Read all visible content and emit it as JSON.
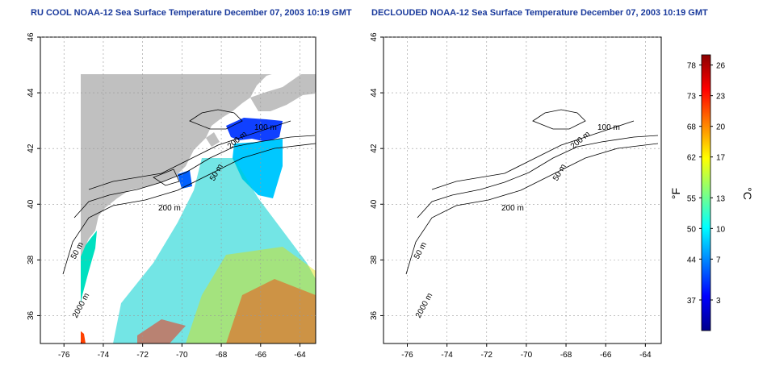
{
  "panels": [
    {
      "title": "RU COOL NOAA-12 Sea Surface Temperature December 07, 2003 10:19 GMT",
      "contour_labels": [
        "50 m",
        "100 m",
        "200 m",
        "2000 m",
        "50 m",
        "200 m"
      ]
    },
    {
      "title": "DECLOUDED NOAA-12 Sea Surface Temperature December 07, 2003 10:19 GMT",
      "contour_labels": [
        "50 m",
        "100 m",
        "200 m",
        "2000 m",
        "50 m",
        "200 m"
      ]
    }
  ],
  "axes": {
    "x_ticks": [
      "-76",
      "-74",
      "-72",
      "-70",
      "-68",
      "-66",
      "-64"
    ],
    "x_values": [
      -76,
      -74,
      -72,
      -70,
      -68,
      -66,
      -64
    ],
    "y_ticks": [
      "36",
      "38",
      "40",
      "42",
      "44",
      "46"
    ],
    "y_values": [
      36,
      38,
      40,
      42,
      44,
      46
    ],
    "xlim": [
      -77.2,
      -63.2
    ],
    "ylim": [
      35,
      46
    ],
    "grid": true
  },
  "colorbar": {
    "fahrenheit_ticks": [
      "78",
      "73",
      "68",
      "62",
      "55",
      "50",
      "44",
      "37"
    ],
    "celsius_ticks": [
      "26",
      "23",
      "20",
      "17",
      "13",
      "10",
      "7",
      "3"
    ],
    "celsius_values": [
      26,
      23,
      20,
      17,
      13,
      10,
      7,
      3
    ],
    "range_c": [
      0,
      27
    ],
    "unit_f": "°F",
    "unit_c": "°C",
    "colors": [
      "#00008b",
      "#0000ff",
      "#0080ff",
      "#00ffff",
      "#80ff80",
      "#ffff00",
      "#ff8000",
      "#ff0000",
      "#8b0000"
    ]
  },
  "colors": {
    "land": "#c0c0c0",
    "title": "#1a3a9c"
  }
}
